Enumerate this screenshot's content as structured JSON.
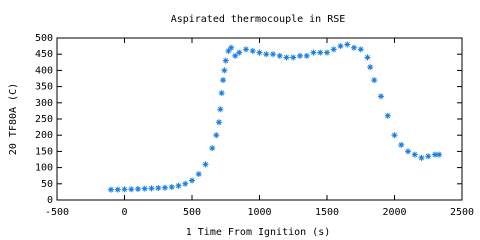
{
  "chart_data": {
    "type": "scatter",
    "title": "Aspirated thermocouple in RSE",
    "x_label": "1 Time From Ignition (s)",
    "y_label": "20 TF80A (C)",
    "xlim": [
      -500,
      2500
    ],
    "xticks": [
      -500,
      0,
      500,
      1000,
      1500,
      2000,
      2500
    ],
    "ylim": [
      0,
      500
    ],
    "yticks": [
      0,
      50,
      100,
      150,
      200,
      250,
      300,
      350,
      400,
      450,
      500
    ],
    "marker": "asterisk",
    "grid": false,
    "series": [
      {
        "color": "#1a7fe0",
        "x": [
          -100,
          -50,
          0,
          50,
          100,
          150,
          200,
          250,
          300,
          350,
          400,
          450,
          500,
          550,
          600,
          650,
          680,
          700,
          710,
          720,
          730,
          740,
          750,
          770,
          790,
          820,
          850,
          900,
          950,
          1000,
          1050,
          1100,
          1150,
          1200,
          1250,
          1300,
          1350,
          1400,
          1450,
          1500,
          1550,
          1600,
          1650,
          1700,
          1750,
          1800,
          1820,
          1850,
          1900,
          1950,
          2000,
          2050,
          2100,
          2150,
          2200,
          2250,
          2300,
          2330
        ],
        "values": [
          32,
          32,
          33,
          33,
          34,
          35,
          36,
          37,
          38,
          40,
          44,
          50,
          60,
          80,
          110,
          160,
          200,
          240,
          280,
          330,
          370,
          400,
          430,
          460,
          470,
          445,
          455,
          465,
          460,
          455,
          450,
          450,
          445,
          440,
          440,
          445,
          445,
          455,
          455,
          455,
          465,
          475,
          480,
          470,
          465,
          440,
          410,
          370,
          320,
          260,
          200,
          170,
          150,
          140,
          130,
          135,
          140,
          140
        ]
      }
    ]
  }
}
